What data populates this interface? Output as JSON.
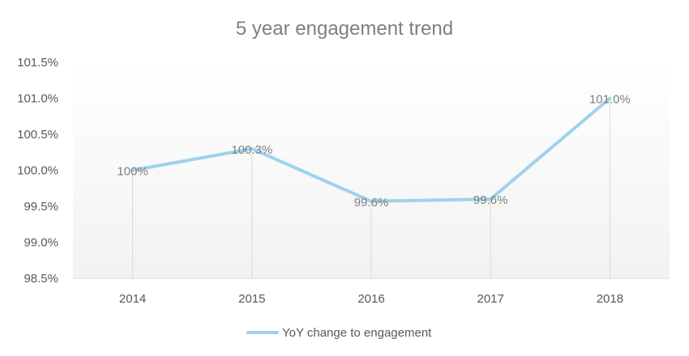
{
  "chart_data": {
    "type": "line",
    "title": "5 year engagement trend",
    "categories": [
      "2014",
      "2015",
      "2016",
      "2017",
      "2018"
    ],
    "series": [
      {
        "name": "YoY change to engagement",
        "values": [
          100.0,
          100.3,
          99.57,
          99.6,
          101.0
        ],
        "data_labels": [
          "100%",
          "100.3%",
          "99.6%",
          "99.6%",
          "101.0%"
        ],
        "color": "#9dd3eb"
      }
    ],
    "yticks": [
      "101.5%",
      "101.0%",
      "100.5%",
      "100.0%",
      "99.5%",
      "99.0%",
      "98.5%"
    ],
    "ylim": [
      98.5,
      101.5
    ],
    "drop_lines": true,
    "plot_area_gradient": [
      "#ffffff",
      "#f2f2f2"
    ],
    "legend_position": "bottom"
  }
}
